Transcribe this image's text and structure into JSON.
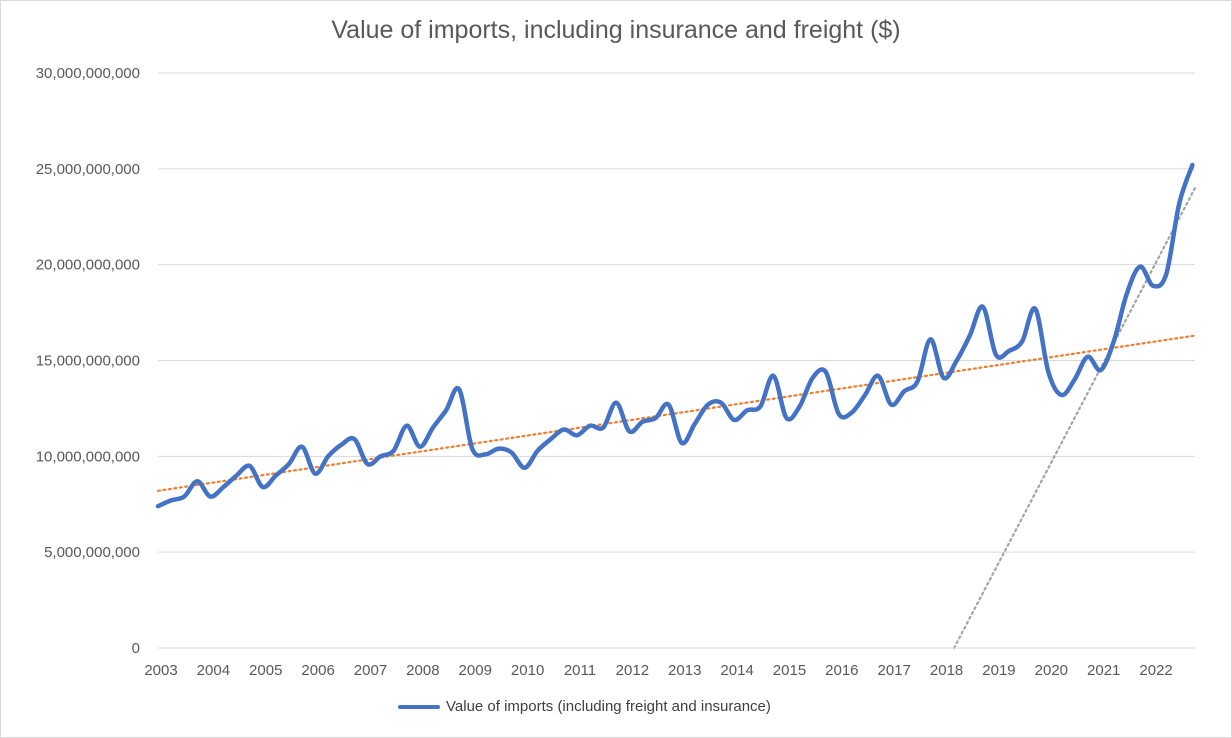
{
  "chart_data": {
    "type": "line",
    "title": "Value of imports, including insurance and freight ($)",
    "ylim": [
      0,
      30000000000
    ],
    "y_ticks": [
      0,
      5000000000,
      10000000000,
      15000000000,
      20000000000,
      25000000000,
      30000000000
    ],
    "y_tick_labels": [
      "0",
      "5,000,000,000",
      "10,000,000,000",
      "15,000,000,000",
      "20,000,000,000",
      "25,000,000,000",
      "30,000,000,000"
    ],
    "x_range": [
      2003.0,
      2022.8
    ],
    "x_tick_labels": [
      "2003",
      "2004",
      "2005",
      "2006",
      "2007",
      "2008",
      "2009",
      "2010",
      "2011",
      "2012",
      "2013",
      "2014",
      "2015",
      "2016",
      "2017",
      "2018",
      "2019",
      "2020",
      "2021",
      "2022"
    ],
    "grid": true,
    "legend_position": "bottom",
    "series": [
      {
        "name": "Value of imports (including freight and insurance)",
        "color": "#4472C4",
        "x": [
          2003.0,
          2003.25,
          2003.5,
          2003.75,
          2004.0,
          2004.25,
          2004.5,
          2004.75,
          2005.0,
          2005.25,
          2005.5,
          2005.75,
          2006.0,
          2006.25,
          2006.5,
          2006.75,
          2007.0,
          2007.25,
          2007.5,
          2007.75,
          2008.0,
          2008.25,
          2008.5,
          2008.75,
          2009.0,
          2009.25,
          2009.5,
          2009.75,
          2010.0,
          2010.25,
          2010.5,
          2010.75,
          2011.0,
          2011.25,
          2011.5,
          2011.75,
          2012.0,
          2012.25,
          2012.5,
          2012.75,
          2013.0,
          2013.25,
          2013.5,
          2013.75,
          2014.0,
          2014.25,
          2014.5,
          2014.75,
          2015.0,
          2015.25,
          2015.5,
          2015.75,
          2016.0,
          2016.25,
          2016.5,
          2016.75,
          2017.0,
          2017.25,
          2017.5,
          2017.75,
          2018.0,
          2018.25,
          2018.5,
          2018.75,
          2019.0,
          2019.25,
          2019.5,
          2019.75,
          2020.0,
          2020.25,
          2020.5,
          2020.75,
          2021.0,
          2021.25,
          2021.5,
          2021.75,
          2022.0,
          2022.25,
          2022.5,
          2022.75
        ],
        "values": [
          7400000000,
          7700000000,
          7900000000,
          8700000000,
          7900000000,
          8400000000,
          9000000000,
          9500000000,
          8400000000,
          9000000000,
          9600000000,
          10500000000,
          9100000000,
          10000000000,
          10600000000,
          10900000000,
          9600000000,
          10000000000,
          10300000000,
          11600000000,
          10500000000,
          11500000000,
          12400000000,
          13500000000,
          10400000000,
          10100000000,
          10400000000,
          10200000000,
          9400000000,
          10300000000,
          10900000000,
          11400000000,
          11100000000,
          11600000000,
          11500000000,
          12800000000,
          11300000000,
          11800000000,
          12000000000,
          12700000000,
          10700000000,
          11700000000,
          12700000000,
          12800000000,
          11900000000,
          12400000000,
          12600000000,
          14200000000,
          12000000000,
          12600000000,
          14100000000,
          14400000000,
          12200000000,
          12300000000,
          13200000000,
          14200000000,
          12700000000,
          13400000000,
          13900000000,
          16100000000,
          14100000000,
          15000000000,
          16300000000,
          17800000000,
          15300000000,
          15500000000,
          16000000000,
          17700000000,
          14400000000,
          13200000000,
          14000000000,
          15200000000,
          14500000000,
          16000000000,
          18500000000,
          19900000000,
          18900000000,
          19500000000,
          23200000000,
          25200000000
        ]
      }
    ],
    "trendlines": [
      {
        "kind": "linear",
        "color": "#ED7D31",
        "x": [
          2003.0,
          2022.8
        ],
        "values": [
          8200000000,
          16300000000
        ]
      },
      {
        "kind": "polynomial",
        "color": "#A5A5A5",
        "x": [
          2018.2,
          2022.8
        ],
        "values": [
          0,
          24000000000
        ]
      }
    ]
  }
}
